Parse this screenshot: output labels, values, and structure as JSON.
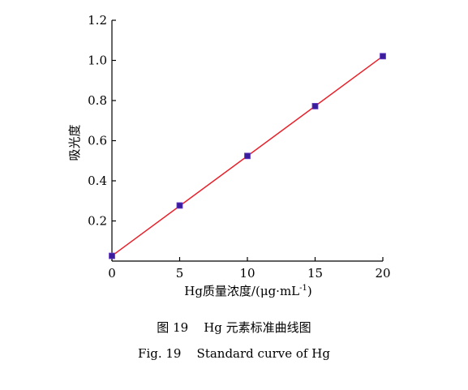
{
  "chart_data": {
    "type": "line",
    "title": "",
    "xlabel_main": "Hg质量浓度/(μg·mL",
    "xlabel_sup": "-1",
    "xlabel_close": ")",
    "ylabel": "吸光度",
    "xlim": [
      0,
      20
    ],
    "ylim": [
      0,
      1.2
    ],
    "x_ticks": [
      0,
      5,
      10,
      15,
      20
    ],
    "y_ticks": [
      0.2,
      0.4,
      0.6,
      0.8,
      1.0,
      1.2
    ],
    "x_tick_labels": [
      "0",
      "5",
      "10",
      "15",
      "20"
    ],
    "y_tick_labels": [
      "0.2",
      "0.4",
      "0.6",
      "0.8",
      "1.0",
      "1.2"
    ],
    "grid": false,
    "series": [
      {
        "x": [
          0,
          5,
          10,
          15,
          20
        ],
        "y": [
          0.026,
          0.277,
          0.524,
          0.772,
          1.021
        ],
        "line_color": "#e8202a",
        "marker_color": "#3a1d9c",
        "marker": "square"
      }
    ]
  },
  "captions": {
    "cn": "图 19    Hg 元素标准曲线图",
    "en": "Fig. 19    Standard curve of Hg"
  }
}
